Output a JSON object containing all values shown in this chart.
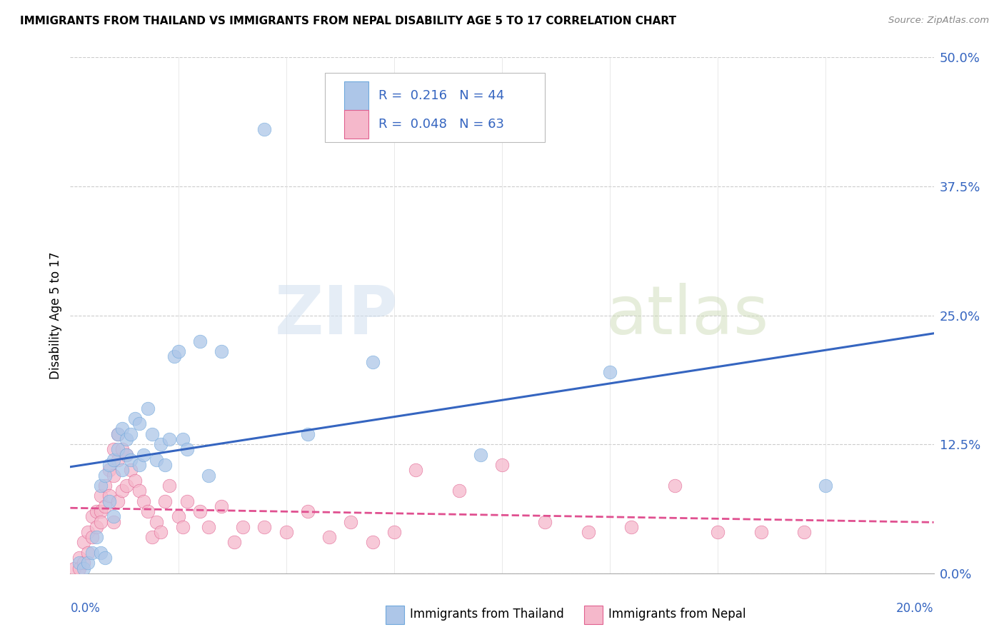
{
  "title": "IMMIGRANTS FROM THAILAND VS IMMIGRANTS FROM NEPAL DISABILITY AGE 5 TO 17 CORRELATION CHART",
  "source": "Source: ZipAtlas.com",
  "ylabel": "Disability Age 5 to 17",
  "ytick_values": [
    0.0,
    12.5,
    25.0,
    37.5,
    50.0
  ],
  "xlim": [
    0.0,
    20.0
  ],
  "ylim": [
    0.0,
    50.0
  ],
  "legend_r_thailand": "0.216",
  "legend_n_thailand": "44",
  "legend_r_nepal": "0.048",
  "legend_n_nepal": "63",
  "thailand_color": "#adc6e8",
  "nepal_color": "#f5b8cb",
  "thailand_edge_color": "#6fa8dc",
  "nepal_edge_color": "#e06090",
  "thailand_line_color": "#3565c0",
  "nepal_line_color": "#e05090",
  "watermark_zip": "ZIP",
  "watermark_atlas": "atlas",
  "thailand_x": [
    0.2,
    0.3,
    0.4,
    0.5,
    0.6,
    0.7,
    0.7,
    0.8,
    0.8,
    0.9,
    0.9,
    1.0,
    1.0,
    1.1,
    1.1,
    1.2,
    1.2,
    1.3,
    1.3,
    1.4,
    1.4,
    1.5,
    1.6,
    1.6,
    1.7,
    1.8,
    1.9,
    2.0,
    2.1,
    2.2,
    2.3,
    2.4,
    2.5,
    2.6,
    2.7,
    3.0,
    3.2,
    3.5,
    4.5,
    5.5,
    7.0,
    9.5,
    12.5,
    17.5
  ],
  "thailand_y": [
    1.0,
    0.5,
    1.0,
    2.0,
    3.5,
    8.5,
    2.0,
    9.5,
    1.5,
    10.5,
    7.0,
    11.0,
    5.5,
    13.5,
    12.0,
    14.0,
    10.0,
    13.0,
    11.5,
    13.5,
    11.0,
    15.0,
    14.5,
    10.5,
    11.5,
    16.0,
    13.5,
    11.0,
    12.5,
    10.5,
    13.0,
    21.0,
    21.5,
    13.0,
    12.0,
    22.5,
    9.5,
    21.5,
    43.0,
    13.5,
    20.5,
    11.5,
    19.5,
    8.5
  ],
  "nepal_x": [
    0.1,
    0.2,
    0.2,
    0.3,
    0.3,
    0.4,
    0.4,
    0.5,
    0.5,
    0.6,
    0.6,
    0.7,
    0.7,
    0.7,
    0.8,
    0.8,
    0.9,
    0.9,
    1.0,
    1.0,
    1.0,
    1.1,
    1.1,
    1.1,
    1.2,
    1.2,
    1.3,
    1.3,
    1.4,
    1.5,
    1.6,
    1.7,
    1.8,
    1.9,
    2.0,
    2.1,
    2.2,
    2.3,
    2.5,
    2.6,
    2.7,
    3.0,
    3.2,
    3.5,
    3.8,
    4.0,
    4.5,
    5.0,
    5.5,
    6.0,
    6.5,
    7.0,
    7.5,
    8.0,
    9.0,
    10.0,
    11.0,
    12.0,
    13.0,
    14.0,
    15.0,
    16.0,
    17.0
  ],
  "nepal_y": [
    0.5,
    1.5,
    0.5,
    3.0,
    1.0,
    4.0,
    2.0,
    5.5,
    3.5,
    6.0,
    4.5,
    7.5,
    6.0,
    5.0,
    8.5,
    6.5,
    10.0,
    7.5,
    12.0,
    9.5,
    5.0,
    13.5,
    11.0,
    7.0,
    12.0,
    8.0,
    11.5,
    8.5,
    10.0,
    9.0,
    8.0,
    7.0,
    6.0,
    3.5,
    5.0,
    4.0,
    7.0,
    8.5,
    5.5,
    4.5,
    7.0,
    6.0,
    4.5,
    6.5,
    3.0,
    4.5,
    4.5,
    4.0,
    6.0,
    3.5,
    5.0,
    3.0,
    4.0,
    10.0,
    8.0,
    10.5,
    5.0,
    4.0,
    4.5,
    8.5,
    4.0,
    4.0,
    4.0
  ]
}
